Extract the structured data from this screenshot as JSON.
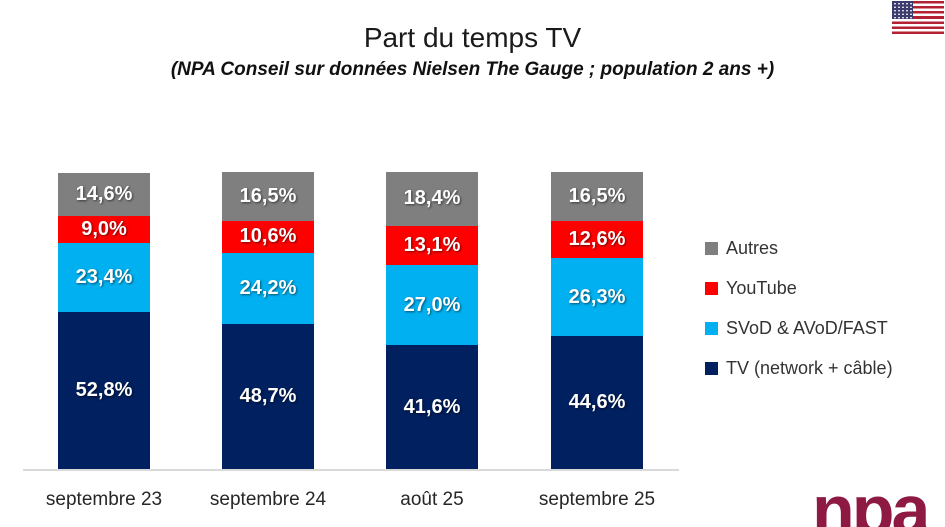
{
  "chart_data": {
    "type": "bar",
    "stacked": true,
    "percent": true,
    "title": "Part du temps TV",
    "subtitle": "(NPA Conseil sur données Nielsen The Gauge ; population 2 ans +)",
    "categories": [
      "septembre 23",
      "septembre 24",
      "août 25",
      "septembre 25"
    ],
    "series": [
      {
        "name": "TV (network + câble)",
        "color": "#002060",
        "values": [
          52.8,
          48.7,
          41.6,
          44.6
        ],
        "labels": [
          "52,8%",
          "48,7%",
          "41,6%",
          "44,6%"
        ]
      },
      {
        "name": "SVoD & AVoD/FAST",
        "color": "#00B0F0",
        "values": [
          23.4,
          24.2,
          27.0,
          26.3
        ],
        "labels": [
          "23,4%",
          "24,2%",
          "27,0%",
          "26,3%"
        ]
      },
      {
        "name": "YouTube",
        "color": "#FF0000",
        "values": [
          9.0,
          10.6,
          13.1,
          12.6
        ],
        "labels": [
          "9,0%",
          "10,6%",
          "13,1%",
          "12,6%"
        ]
      },
      {
        "name": "Autres",
        "color": "#7F7F7F",
        "values": [
          14.6,
          16.5,
          18.4,
          16.5
        ],
        "labels": [
          "14,6%",
          "16,5%",
          "18,4%",
          "16,5%"
        ]
      }
    ],
    "legend_order": [
      "Autres",
      "YouTube",
      "SVoD & AVoD/FAST",
      "TV (network + câble)"
    ],
    "ylim": [
      0,
      100
    ],
    "grid": false,
    "legend_position": "right",
    "axis_line_color": "#D9D9D9"
  },
  "branding": {
    "flag_icon": "us-flag",
    "logo_text": "npa",
    "logo_color": "#8E1A44"
  }
}
